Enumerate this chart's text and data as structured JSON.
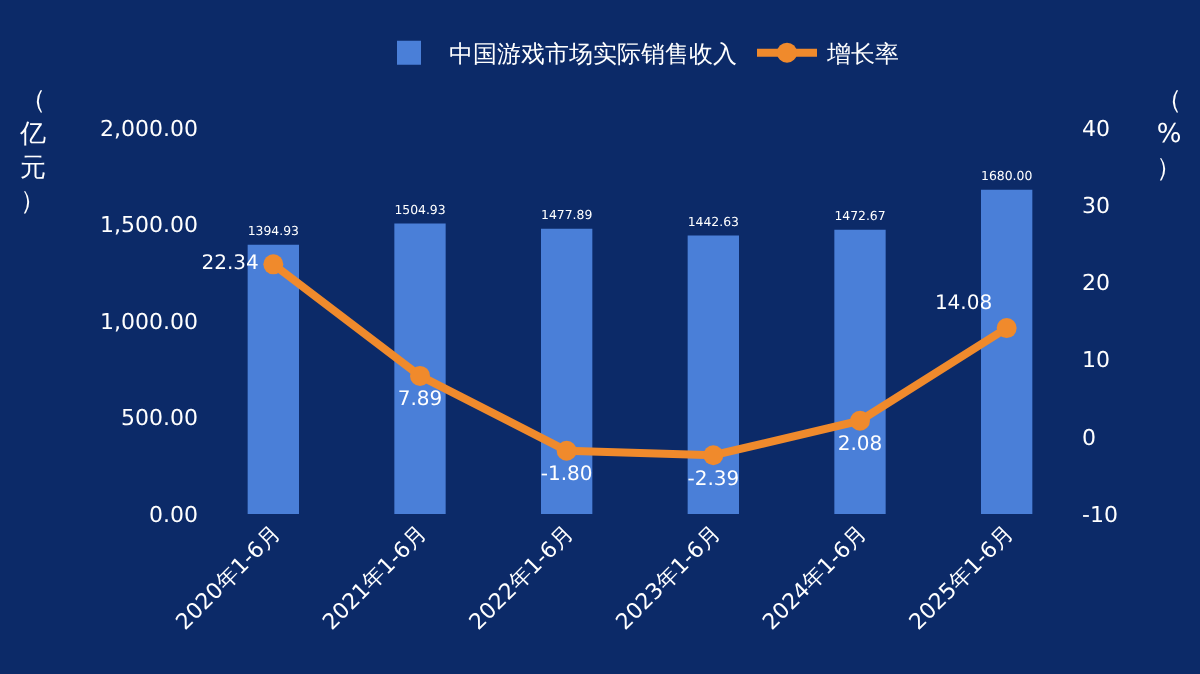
{
  "chart_data": {
    "type": "bar",
    "categories": [
      "2020年1-6月",
      "2021年1-6月",
      "2022年1-6月",
      "2023年1-6月",
      "2024年1-6月",
      "2025年1-6月"
    ],
    "series": [
      {
        "name": "中国游戏市场实际销售收入",
        "color": "#4a7fd8",
        "values": [
          1394.93,
          1504.93,
          1477.89,
          1442.63,
          1472.67,
          1680.0
        ],
        "value_labels": [
          "1394.93",
          "1504.93",
          "1477.89",
          "1442.63",
          "1472.67",
          "1680.00"
        ]
      },
      {
        "name": "增长率",
        "type": "line",
        "axis": "y2",
        "color": "#f08a2c",
        "marker": "circle",
        "values": [
          22.34,
          7.89,
          -1.8,
          -2.39,
          2.08,
          14.08
        ],
        "value_labels": [
          "22.34",
          "7.89",
          "-1.80",
          "-2.39",
          "2.08",
          "14.08"
        ]
      }
    ],
    "ylabel": "（亿元）",
    "y2label": "（%）",
    "ylim": [
      0,
      2000
    ],
    "yticks": [
      {
        "value": 0,
        "label": "0.00"
      },
      {
        "value": 500,
        "label": "500.00"
      },
      {
        "value": 1000,
        "label": "1,000.00"
      },
      {
        "value": 1500,
        "label": "1,500.00"
      },
      {
        "value": 2000,
        "label": "2,000.00"
      }
    ],
    "y2lim": [
      -10,
      40
    ],
    "y2ticks": [
      -10,
      0,
      10,
      20,
      30,
      40
    ],
    "legend": "top",
    "grid": false
  }
}
